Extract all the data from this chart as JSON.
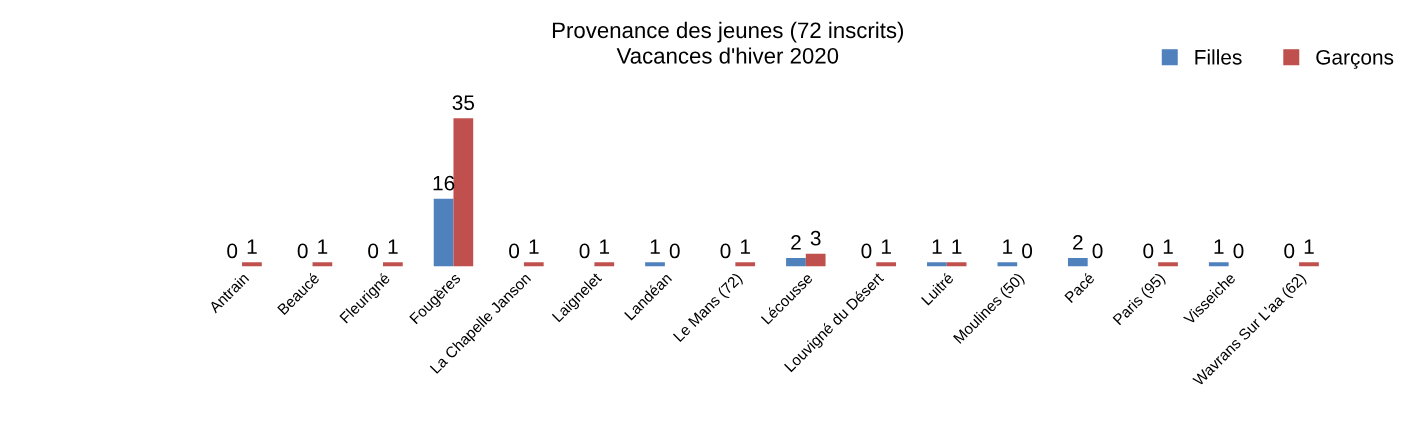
{
  "chart_data": {
    "type": "bar",
    "title": "Provenance des jeunes (72 inscrits)\nVacances d'hiver 2020",
    "categories": [
      "Antrain",
      "Beaucé",
      "Fleurigné",
      "Fougères",
      "La Chapelle Janson",
      "Laignelet",
      "Landéan",
      "Le Mans (72)",
      "Lécousse",
      "Louvigné du Désert",
      "Luitré",
      "Moulines (50)",
      "Pacé",
      "Paris (95)",
      "Visseiche",
      "Wavrans Sur L'aa (62)"
    ],
    "series": [
      {
        "name": "Filles",
        "color": "#4f81bd",
        "values": [
          0,
          0,
          0,
          16,
          0,
          0,
          1,
          0,
          2,
          0,
          1,
          1,
          2,
          0,
          1,
          0
        ]
      },
      {
        "name": "Garçons",
        "color": "#c0504d",
        "values": [
          1,
          1,
          1,
          35,
          1,
          1,
          0,
          1,
          3,
          1,
          1,
          0,
          0,
          1,
          0,
          1
        ]
      }
    ],
    "data_labels": true,
    "legend": "top right",
    "grid": false
  }
}
